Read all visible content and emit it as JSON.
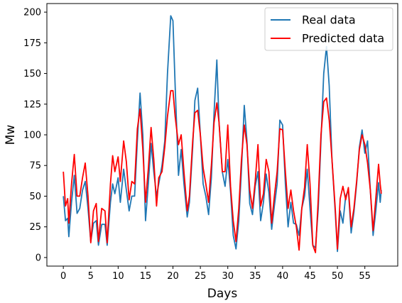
{
  "chart_data": {
    "type": "line",
    "title": "",
    "xlabel": "Days",
    "ylabel": "Mw",
    "xlim": [
      -3,
      61
    ],
    "ylim": [
      -7,
      207
    ],
    "xticks": [
      0,
      5,
      10,
      15,
      20,
      25,
      30,
      35,
      40,
      45,
      50,
      55
    ],
    "yticks": [
      0,
      25,
      50,
      75,
      100,
      125,
      150,
      175,
      200
    ],
    "grid": false,
    "legend_position": "top-right",
    "series": [
      {
        "name": "Real data",
        "color": "#1f77b4",
        "points": [
          [
            0,
            50
          ],
          [
            0.4,
            30
          ],
          [
            0.8,
            32
          ],
          [
            1.0,
            17
          ],
          [
            1.5,
            45
          ],
          [
            2.0,
            67
          ],
          [
            2.5,
            36
          ],
          [
            3.0,
            40
          ],
          [
            3.5,
            55
          ],
          [
            4.0,
            62
          ],
          [
            4.5,
            40
          ],
          [
            5.0,
            13
          ],
          [
            5.5,
            28
          ],
          [
            6.0,
            30
          ],
          [
            6.4,
            10
          ],
          [
            7.0,
            27
          ],
          [
            7.6,
            27
          ],
          [
            8.0,
            10
          ],
          [
            8.6,
            45
          ],
          [
            9.0,
            60
          ],
          [
            9.4,
            52
          ],
          [
            10.0,
            65
          ],
          [
            10.4,
            45
          ],
          [
            11.0,
            72
          ],
          [
            11.5,
            55
          ],
          [
            12.0,
            38
          ],
          [
            12.5,
            50
          ],
          [
            13.0,
            50
          ],
          [
            13.5,
            95
          ],
          [
            14.0,
            134
          ],
          [
            14.5,
            100
          ],
          [
            15.0,
            30
          ],
          [
            15.5,
            60
          ],
          [
            16.0,
            93
          ],
          [
            16.5,
            70
          ],
          [
            17.0,
            50
          ],
          [
            17.4,
            60
          ],
          [
            18.0,
            75
          ],
          [
            18.5,
            95
          ],
          [
            19.0,
            150
          ],
          [
            19.6,
            197
          ],
          [
            20.0,
            193
          ],
          [
            20.4,
            140
          ],
          [
            21.0,
            67
          ],
          [
            21.5,
            88
          ],
          [
            22.0,
            60
          ],
          [
            22.6,
            33
          ],
          [
            23.0,
            45
          ],
          [
            23.6,
            90
          ],
          [
            24.0,
            128
          ],
          [
            24.5,
            138
          ],
          [
            25.0,
            100
          ],
          [
            25.5,
            60
          ],
          [
            26.0,
            50
          ],
          [
            26.5,
            35
          ],
          [
            27.0,
            65
          ],
          [
            27.5,
            118
          ],
          [
            28.0,
            161
          ],
          [
            28.4,
            110
          ],
          [
            29.0,
            70
          ],
          [
            29.5,
            58
          ],
          [
            30.0,
            80
          ],
          [
            30.5,
            54
          ],
          [
            31.0,
            18
          ],
          [
            31.5,
            7
          ],
          [
            32.0,
            30
          ],
          [
            32.5,
            72
          ],
          [
            33.0,
            124
          ],
          [
            33.5,
            95
          ],
          [
            34.0,
            44
          ],
          [
            34.5,
            35
          ],
          [
            35.0,
            58
          ],
          [
            35.5,
            70
          ],
          [
            36.0,
            30
          ],
          [
            36.5,
            45
          ],
          [
            37.0,
            68
          ],
          [
            37.5,
            53
          ],
          [
            38.0,
            23
          ],
          [
            38.5,
            42
          ],
          [
            39.0,
            60
          ],
          [
            39.5,
            112
          ],
          [
            40.0,
            108
          ],
          [
            40.5,
            60
          ],
          [
            41.0,
            25
          ],
          [
            41.5,
            45
          ],
          [
            42.0,
            28
          ],
          [
            42.5,
            27
          ],
          [
            43.0,
            18
          ],
          [
            43.5,
            40
          ],
          [
            44.0,
            50
          ],
          [
            44.5,
            72
          ],
          [
            45.0,
            40
          ],
          [
            45.5,
            10
          ],
          [
            46.0,
            8
          ],
          [
            46.5,
            40
          ],
          [
            47.0,
            95
          ],
          [
            47.5,
            150
          ],
          [
            48.0,
            172
          ],
          [
            48.5,
            140
          ],
          [
            49.0,
            80
          ],
          [
            49.6,
            37
          ],
          [
            50.0,
            5
          ],
          [
            50.5,
            38
          ],
          [
            51.0,
            28
          ],
          [
            51.5,
            50
          ],
          [
            52.0,
            55
          ],
          [
            52.5,
            20
          ],
          [
            53.0,
            37
          ],
          [
            53.5,
            60
          ],
          [
            54.0,
            90
          ],
          [
            54.5,
            104
          ],
          [
            55.0,
            85
          ],
          [
            55.5,
            95
          ],
          [
            56.0,
            55
          ],
          [
            56.5,
            18
          ],
          [
            57.0,
            38
          ],
          [
            57.5,
            61
          ],
          [
            57.8,
            45
          ],
          [
            58.0,
            55
          ]
        ]
      },
      {
        "name": "Predicted data",
        "color": "#ff0000",
        "points": [
          [
            0,
            70
          ],
          [
            0.4,
            42
          ],
          [
            0.8,
            48
          ],
          [
            1.0,
            28
          ],
          [
            1.5,
            60
          ],
          [
            2.0,
            84
          ],
          [
            2.5,
            50
          ],
          [
            3.0,
            50
          ],
          [
            3.5,
            65
          ],
          [
            4.0,
            77
          ],
          [
            4.5,
            50
          ],
          [
            5.0,
            12
          ],
          [
            5.5,
            38
          ],
          [
            6.0,
            44
          ],
          [
            6.4,
            13
          ],
          [
            7.0,
            40
          ],
          [
            7.6,
            38
          ],
          [
            8.0,
            12
          ],
          [
            8.6,
            60
          ],
          [
            9.0,
            83
          ],
          [
            9.4,
            70
          ],
          [
            10.0,
            82
          ],
          [
            10.4,
            62
          ],
          [
            11.0,
            95
          ],
          [
            11.5,
            78
          ],
          [
            12.0,
            47
          ],
          [
            12.5,
            62
          ],
          [
            13.0,
            60
          ],
          [
            13.5,
            105
          ],
          [
            14.0,
            121
          ],
          [
            14.5,
            88
          ],
          [
            15.0,
            45
          ],
          [
            15.5,
            72
          ],
          [
            16.0,
            106
          ],
          [
            16.5,
            80
          ],
          [
            17.0,
            42
          ],
          [
            17.4,
            65
          ],
          [
            18.0,
            70
          ],
          [
            18.5,
            90
          ],
          [
            19.0,
            115
          ],
          [
            19.6,
            136
          ],
          [
            20.0,
            136
          ],
          [
            20.4,
            115
          ],
          [
            21.0,
            92
          ],
          [
            21.5,
            100
          ],
          [
            22.0,
            70
          ],
          [
            22.6,
            38
          ],
          [
            23.0,
            50
          ],
          [
            23.6,
            95
          ],
          [
            24.0,
            118
          ],
          [
            24.5,
            120
          ],
          [
            25.0,
            100
          ],
          [
            25.5,
            73
          ],
          [
            26.0,
            60
          ],
          [
            26.5,
            45
          ],
          [
            27.0,
            75
          ],
          [
            27.5,
            110
          ],
          [
            28.0,
            126
          ],
          [
            28.4,
            110
          ],
          [
            29.0,
            70
          ],
          [
            29.5,
            70
          ],
          [
            30.0,
            108
          ],
          [
            30.5,
            58
          ],
          [
            31.0,
            30
          ],
          [
            31.5,
            13
          ],
          [
            32.0,
            40
          ],
          [
            32.5,
            80
          ],
          [
            33.0,
            108
          ],
          [
            33.5,
            92
          ],
          [
            34.0,
            55
          ],
          [
            34.5,
            40
          ],
          [
            35.0,
            62
          ],
          [
            35.5,
            92
          ],
          [
            36.0,
            42
          ],
          [
            36.5,
            52
          ],
          [
            37.0,
            80
          ],
          [
            37.5,
            70
          ],
          [
            38.0,
            28
          ],
          [
            38.5,
            50
          ],
          [
            39.0,
            70
          ],
          [
            39.5,
            105
          ],
          [
            40.0,
            104
          ],
          [
            40.5,
            70
          ],
          [
            41.0,
            40
          ],
          [
            41.5,
            55
          ],
          [
            42.0,
            38
          ],
          [
            42.5,
            25
          ],
          [
            43.0,
            6
          ],
          [
            43.5,
            40
          ],
          [
            44.0,
            57
          ],
          [
            44.5,
            92
          ],
          [
            45.0,
            60
          ],
          [
            45.5,
            10
          ],
          [
            46.0,
            4
          ],
          [
            46.5,
            48
          ],
          [
            47.0,
            100
          ],
          [
            47.5,
            127
          ],
          [
            48.0,
            130
          ],
          [
            48.5,
            112
          ],
          [
            49.0,
            80
          ],
          [
            49.6,
            40
          ],
          [
            50.0,
            7
          ],
          [
            50.5,
            48
          ],
          [
            51.0,
            58
          ],
          [
            51.5,
            47
          ],
          [
            52.0,
            57
          ],
          [
            52.5,
            25
          ],
          [
            53.0,
            40
          ],
          [
            53.5,
            62
          ],
          [
            54.0,
            88
          ],
          [
            54.5,
            100
          ],
          [
            55.0,
            92
          ],
          [
            55.5,
            77
          ],
          [
            56.0,
            55
          ],
          [
            56.5,
            22
          ],
          [
            57.0,
            48
          ],
          [
            57.5,
            76
          ],
          [
            57.8,
            60
          ],
          [
            58.0,
            52
          ]
        ]
      }
    ]
  }
}
